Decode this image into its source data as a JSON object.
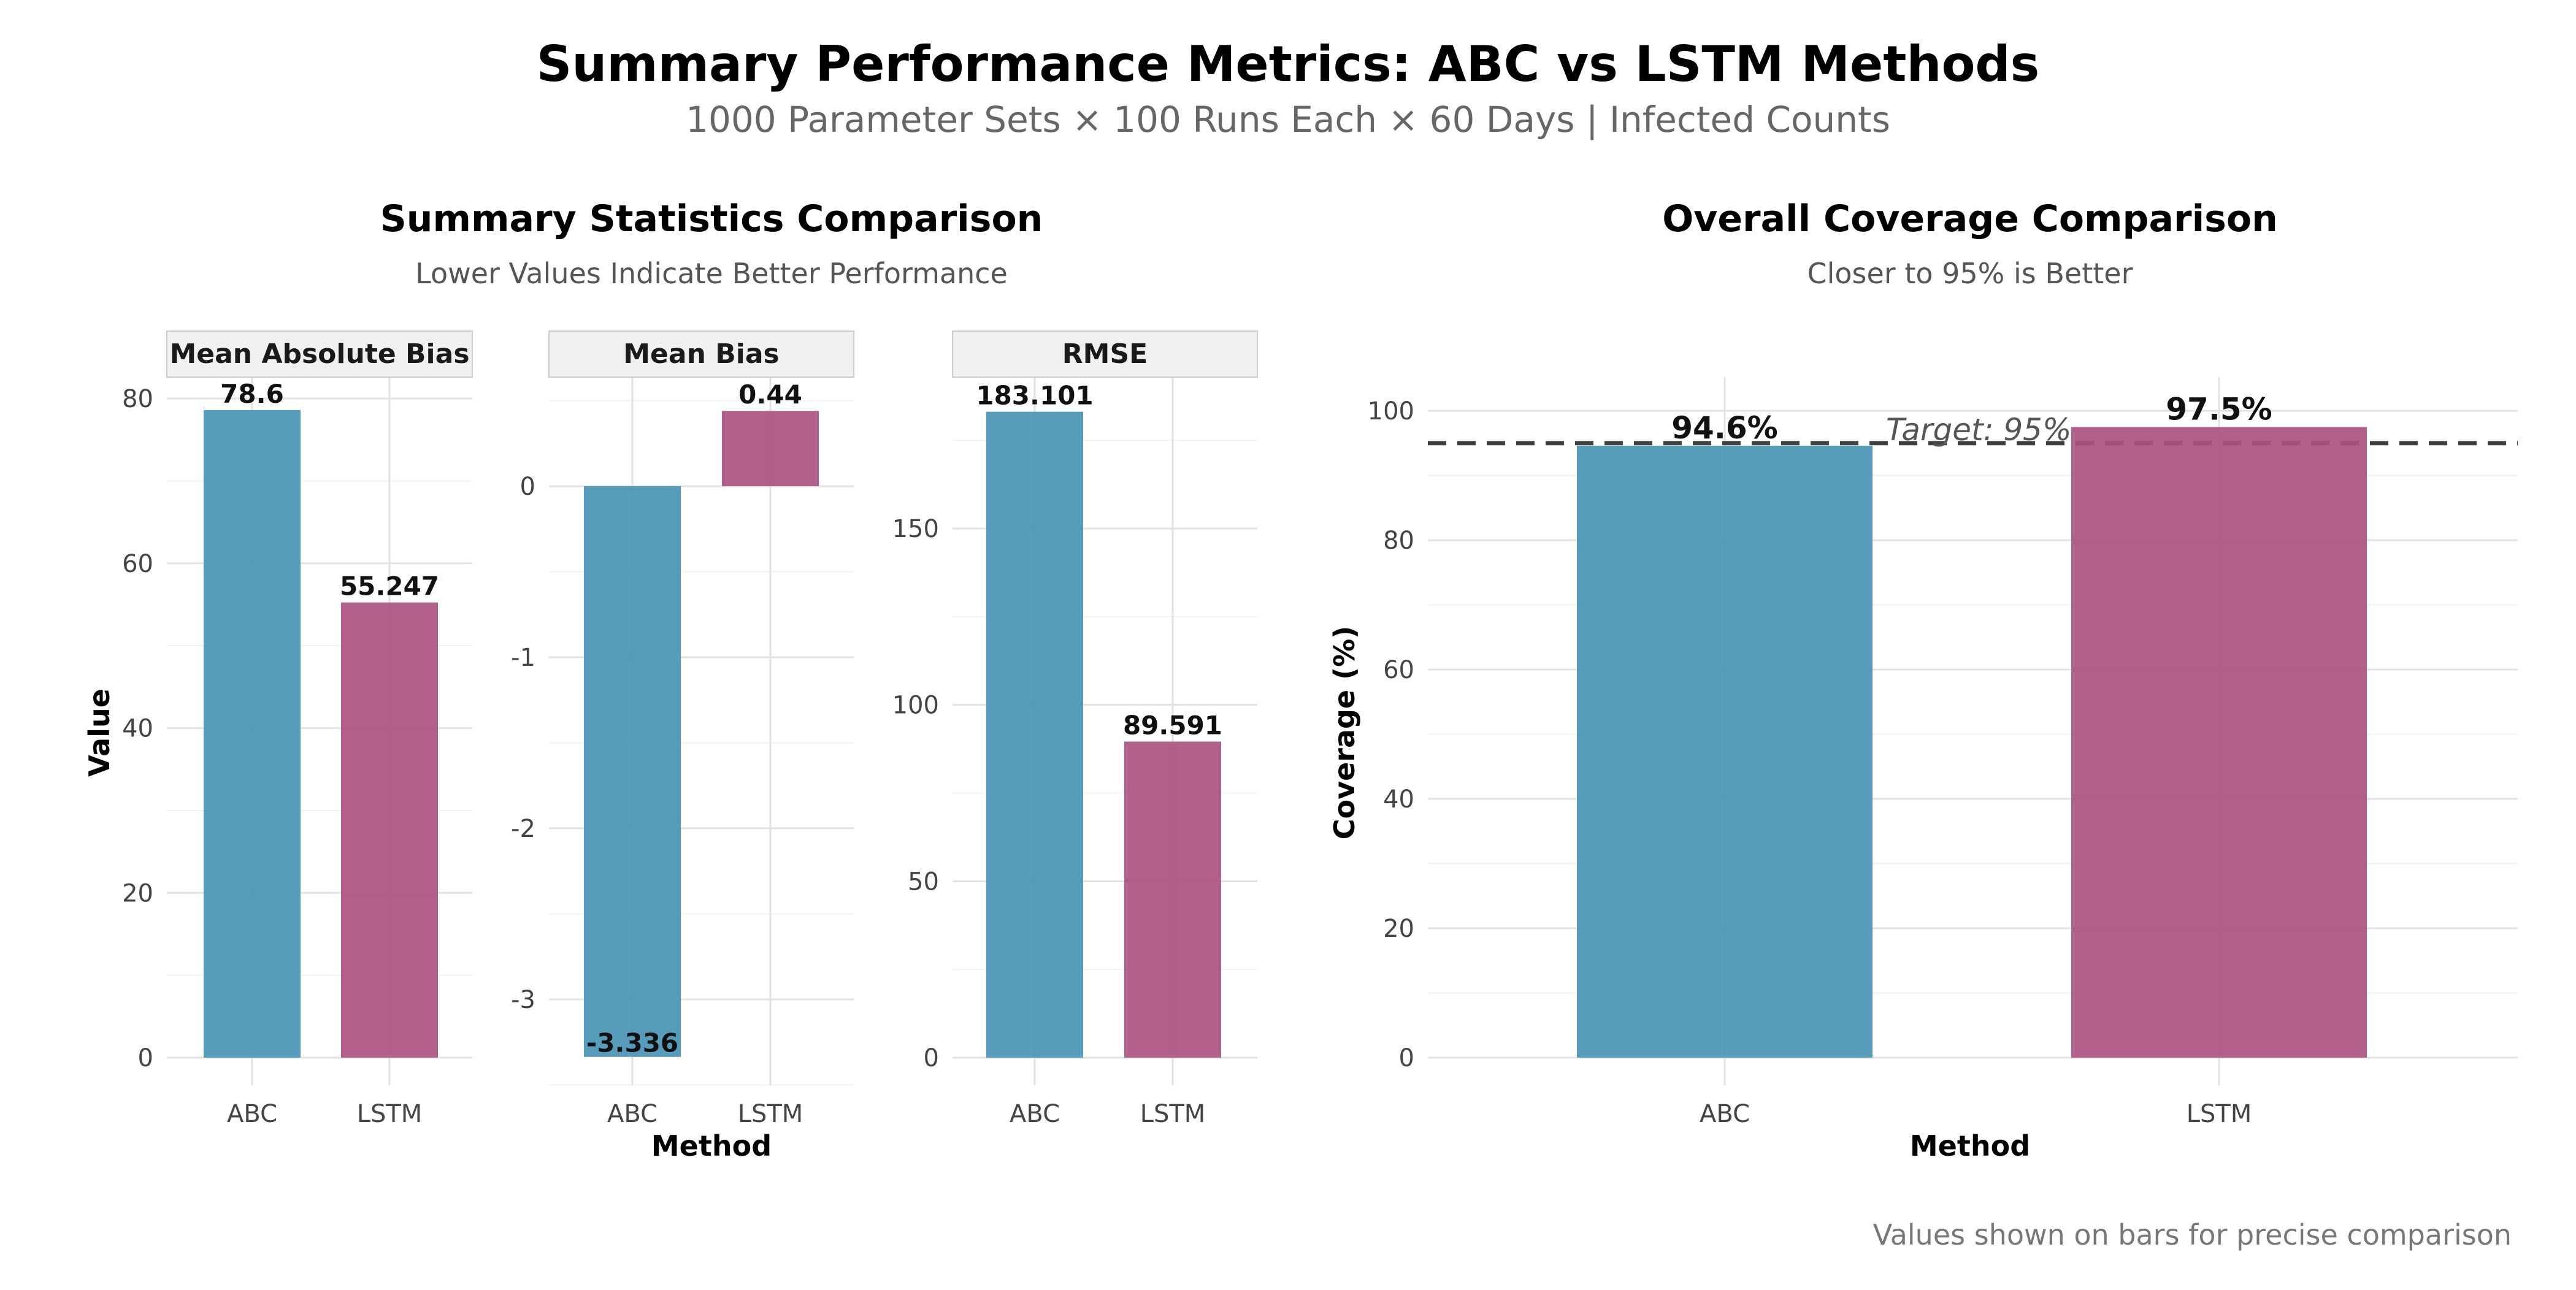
{
  "figure": {
    "title": "Summary Performance Metrics: ABC vs LSTM Methods",
    "subtitle": "1000 Parameter Sets × 100 Runs Each × 60 Days | Infected Counts",
    "caption": "Values shown on bars for precise comparison"
  },
  "colors": {
    "abc": "#4a94b6",
    "lstm": "#aa5282",
    "target_line": "#444444",
    "grid_major": "#e2e2e2",
    "grid_minor": "#f2f2f2",
    "facet_strip": "#f0f0f0"
  },
  "left_panel": {
    "title": "Summary Statistics Comparison",
    "subtitle": "Lower Values Indicate Better Performance",
    "ylabel": "Value",
    "xlabel": "Method"
  },
  "right_panel": {
    "title": "Overall Coverage Comparison",
    "subtitle": "Closer to 95% is Better",
    "ylabel": "Coverage (%)",
    "xlabel": "Method",
    "target_label": "Target: 95%"
  },
  "chart_data": [
    {
      "type": "bar",
      "facet": "Mean Absolute Bias",
      "categories": [
        "ABC",
        "LSTM"
      ],
      "values": [
        78.6,
        55.247
      ],
      "value_labels": [
        "78.6",
        "55.247"
      ],
      "ylim": [
        0,
        80
      ],
      "yticks": [
        0,
        20,
        40,
        60,
        80
      ],
      "ytick_labels": [
        "0",
        "20",
        "40",
        "60",
        "80"
      ],
      "ylabel": "Value",
      "xlabel": "",
      "grid": true
    },
    {
      "type": "bar",
      "facet": "Mean Bias",
      "categories": [
        "ABC",
        "LSTM"
      ],
      "values": [
        -3.336,
        0.44
      ],
      "value_labels": [
        "-3.336",
        "0.44"
      ],
      "ylim": [
        -3.5,
        0.5
      ],
      "yticks": [
        -3,
        -2,
        -1,
        0
      ],
      "ytick_labels": [
        "-3",
        "-2",
        "-1",
        "0"
      ],
      "ylabel": "",
      "xlabel": "Method",
      "grid": true
    },
    {
      "type": "bar",
      "facet": "RMSE",
      "categories": [
        "ABC",
        "LSTM"
      ],
      "values": [
        183.101,
        89.591
      ],
      "value_labels": [
        "183.101",
        "89.591"
      ],
      "ylim": [
        0,
        185
      ],
      "yticks": [
        0,
        50,
        100,
        150
      ],
      "ytick_labels": [
        "0",
        "50",
        "100",
        "150"
      ],
      "ylabel": "",
      "xlabel": "",
      "grid": true
    },
    {
      "type": "bar",
      "facet": "",
      "categories": [
        "ABC",
        "LSTM"
      ],
      "values": [
        94.6,
        97.5
      ],
      "value_labels": [
        "94.6%",
        "97.5%"
      ],
      "reference_line": 95,
      "ylim": [
        0,
        100
      ],
      "yticks": [
        0,
        20,
        40,
        60,
        80,
        100
      ],
      "ytick_labels": [
        "0",
        "20",
        "40",
        "60",
        "80",
        "100"
      ],
      "ylabel": "Coverage (%)",
      "xlabel": "Method",
      "grid": true
    }
  ]
}
